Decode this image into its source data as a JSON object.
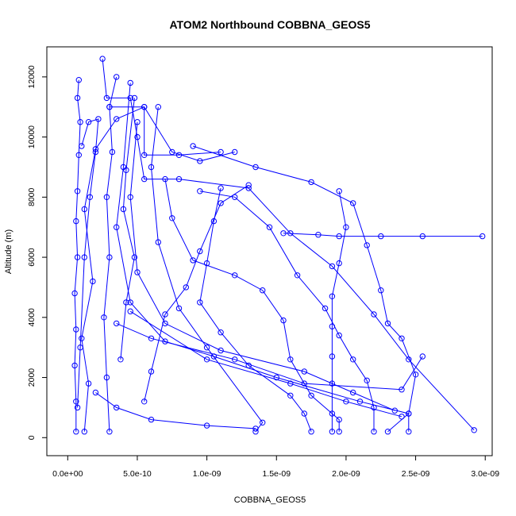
{
  "chart_data": {
    "type": "scatter",
    "title": "ATOM2 Northbound COBBNA_GEOS5",
    "xlabel": "COBBNA_GEOS5",
    "ylabel": "Altitude (m)",
    "xlim": [
      -1.5e-10,
      3.05e-09
    ],
    "ylim": [
      -600,
      13000
    ],
    "x_ticks": [
      0,
      5e-10,
      1e-09,
      1.5e-09,
      2e-09,
      2.5e-09,
      3e-09
    ],
    "x_tick_labels": [
      "0.0e+00",
      "5.0e-10",
      "1.0e-09",
      "1.5e-09",
      "2.0e-09",
      "2.5e-09",
      "3.0e-09"
    ],
    "y_ticks": [
      0,
      2000,
      4000,
      6000,
      8000,
      10000,
      12000
    ],
    "y_tick_labels": [
      "0",
      "2000",
      "4000",
      "6000",
      "8000",
      "10000",
      "12000"
    ],
    "marker": "open-circle",
    "connect_points": true,
    "grid": false,
    "legend": "none",
    "color": "#0000ff",
    "series": [
      {
        "values": [
          [
            6e-11,
            200
          ],
          [
            6e-11,
            1200
          ],
          [
            5e-11,
            2400
          ],
          [
            6e-11,
            3600
          ],
          [
            5e-11,
            4800
          ],
          [
            7e-11,
            6000
          ],
          [
            6e-11,
            7200
          ],
          [
            7e-11,
            8200
          ],
          [
            8e-11,
            9400
          ],
          [
            9e-11,
            10500
          ],
          [
            7e-11,
            11300
          ],
          [
            8e-11,
            11900
          ]
        ]
      },
      {
        "values": [
          [
            1.2e-10,
            200
          ],
          [
            1.5e-10,
            1800
          ],
          [
            1e-10,
            3300
          ],
          [
            1.8e-10,
            5200
          ],
          [
            1.2e-10,
            7600
          ],
          [
            2e-10,
            9600
          ],
          [
            3.5e-10,
            10600
          ],
          [
            5.5e-10,
            11000
          ],
          [
            7.5e-10,
            9500
          ],
          [
            9.5e-10,
            9200
          ],
          [
            1.2e-09,
            9500
          ]
        ]
      },
      {
        "values": [
          [
            2.5e-10,
            12600
          ],
          [
            2.8e-10,
            11300
          ],
          [
            4.5e-10,
            11300
          ],
          [
            5e-10,
            10000
          ],
          [
            5.5e-10,
            8600
          ],
          [
            8e-10,
            8600
          ],
          [
            1.3e-09,
            8300
          ],
          [
            1.6e-09,
            6800
          ],
          [
            1.9e-09,
            5700
          ],
          [
            2.2e-09,
            4100
          ],
          [
            2.45e-09,
            2600
          ],
          [
            2.92e-09,
            250
          ]
        ]
      },
      {
        "values": [
          [
            1.55e-09,
            6800
          ],
          [
            1.8e-09,
            6750
          ],
          [
            1.95e-09,
            6700
          ],
          [
            2.25e-09,
            6700
          ],
          [
            2.55e-09,
            6700
          ],
          [
            2.98e-09,
            6700
          ]
        ]
      },
      {
        "values": [
          [
            4.5e-10,
            11800
          ],
          [
            4e-10,
            9000
          ],
          [
            3.5e-10,
            7000
          ],
          [
            4.5e-10,
            4500
          ],
          [
            7e-10,
            3200
          ],
          [
            1.05e-09,
            2700
          ],
          [
            1.5e-09,
            2000
          ],
          [
            2.1e-09,
            1200
          ],
          [
            2.45e-09,
            800
          ],
          [
            2.3e-09,
            200
          ]
        ]
      },
      {
        "values": [
          [
            4.5e-10,
            4200
          ],
          [
            1e-09,
            2600
          ],
          [
            1.6e-09,
            1800
          ],
          [
            2e-09,
            1200
          ],
          [
            2.4e-09,
            700
          ]
        ]
      },
      {
        "values": [
          [
            3.5e-10,
            3800
          ],
          [
            6e-10,
            3300
          ],
          [
            1.2e-09,
            2600
          ],
          [
            1.7e-09,
            1800
          ],
          [
            2.4e-09,
            1600
          ],
          [
            2.55e-09,
            2700
          ]
        ]
      },
      {
        "values": [
          [
            5e-10,
            10500
          ],
          [
            4.5e-10,
            8000
          ],
          [
            5e-10,
            5500
          ],
          [
            7e-10,
            3800
          ],
          [
            1.1e-09,
            2900
          ],
          [
            1.7e-09,
            2200
          ],
          [
            2.05e-09,
            1500
          ],
          [
            2.35e-09,
            900
          ]
        ]
      },
      {
        "values": [
          [
            6.5e-10,
            11000
          ],
          [
            6e-10,
            9000
          ],
          [
            6.5e-10,
            6500
          ],
          [
            8e-10,
            4300
          ],
          [
            1e-09,
            3000
          ],
          [
            1.4e-09,
            500
          ],
          [
            1.35e-09,
            200
          ]
        ]
      },
      {
        "values": [
          [
            2e-10,
            1500
          ],
          [
            3.5e-10,
            1000
          ],
          [
            6e-10,
            600
          ],
          [
            1e-09,
            400
          ],
          [
            1.35e-09,
            300
          ]
        ]
      },
      {
        "values": [
          [
            9e-10,
            9700
          ],
          [
            1.35e-09,
            9000
          ],
          [
            1.75e-09,
            8500
          ],
          [
            2.05e-09,
            7800
          ],
          [
            2.15e-09,
            6400
          ],
          [
            2.25e-09,
            4900
          ],
          [
            2.3e-09,
            3800
          ],
          [
            2.4e-09,
            3300
          ],
          [
            2.5e-09,
            2100
          ],
          [
            2.45e-09,
            800
          ],
          [
            2.45e-09,
            200
          ]
        ]
      },
      {
        "values": [
          [
            9.5e-10,
            8200
          ],
          [
            1.2e-09,
            8000
          ],
          [
            1.45e-09,
            7000
          ],
          [
            1.65e-09,
            5400
          ],
          [
            1.85e-09,
            4300
          ],
          [
            1.95e-09,
            3400
          ],
          [
            2.05e-09,
            2600
          ],
          [
            2.15e-09,
            1900
          ],
          [
            2.2e-09,
            1000
          ],
          [
            2.2e-09,
            200
          ]
        ]
      },
      {
        "values": [
          [
            1.1e-09,
            8300
          ],
          [
            1.05e-09,
            7200
          ],
          [
            1e-09,
            5800
          ],
          [
            9.5e-10,
            4500
          ],
          [
            1.1e-09,
            3500
          ],
          [
            1.3e-09,
            2400
          ],
          [
            1.6e-09,
            1400
          ],
          [
            1.7e-09,
            800
          ],
          [
            1.75e-09,
            200
          ]
        ]
      },
      {
        "values": [
          [
            7e-10,
            8600
          ],
          [
            7.5e-10,
            7300
          ],
          [
            9e-10,
            5900
          ],
          [
            1.2e-09,
            5400
          ],
          [
            1.4e-09,
            4900
          ],
          [
            1.55e-09,
            3900
          ],
          [
            1.6e-09,
            2600
          ],
          [
            1.75e-09,
            1400
          ],
          [
            1.95e-09,
            600
          ],
          [
            1.95e-09,
            200
          ]
        ]
      },
      {
        "values": [
          [
            1.95e-09,
            8200
          ],
          [
            2e-09,
            7000
          ],
          [
            1.95e-09,
            5800
          ],
          [
            1.9e-09,
            4700
          ],
          [
            1.9e-09,
            3700
          ],
          [
            1.9e-09,
            2700
          ],
          [
            1.9e-09,
            1800
          ],
          [
            1.9e-09,
            800
          ],
          [
            1.9e-09,
            200
          ]
        ]
      },
      {
        "values": [
          [
            3e-10,
            11000
          ],
          [
            5.5e-10,
            11000
          ],
          [
            5.5e-10,
            9400
          ],
          [
            8e-10,
            9400
          ],
          [
            1.1e-09,
            9500
          ]
        ]
      },
      {
        "values": [
          [
            7e-11,
            1000
          ],
          [
            9e-11,
            3000
          ],
          [
            1.2e-10,
            6000
          ],
          [
            1.6e-10,
            8000
          ],
          [
            2e-10,
            9500
          ],
          [
            2.2e-10,
            10600
          ],
          [
            1.5e-10,
            10500
          ],
          [
            1e-10,
            9700
          ]
        ]
      },
      {
        "values": [
          [
            3e-10,
            200
          ],
          [
            2.8e-10,
            2000
          ],
          [
            2.6e-10,
            4000
          ],
          [
            3e-10,
            6000
          ],
          [
            2.8e-10,
            8000
          ],
          [
            3.2e-10,
            9500
          ],
          [
            3e-10,
            11000
          ],
          [
            3.5e-10,
            12000
          ]
        ]
      },
      {
        "values": [
          [
            3.8e-10,
            2600
          ],
          [
            4.2e-10,
            4500
          ],
          [
            4.8e-10,
            6000
          ],
          [
            4e-10,
            7600
          ],
          [
            4.2e-10,
            8900
          ],
          [
            4.8e-10,
            11300
          ]
        ]
      },
      {
        "values": [
          [
            5.5e-10,
            1200
          ],
          [
            6e-10,
            2200
          ],
          [
            7e-10,
            4100
          ],
          [
            8.5e-10,
            5000
          ],
          [
            9.5e-10,
            6200
          ],
          [
            1.1e-09,
            7800
          ],
          [
            1.3e-09,
            8400
          ]
        ]
      }
    ]
  }
}
